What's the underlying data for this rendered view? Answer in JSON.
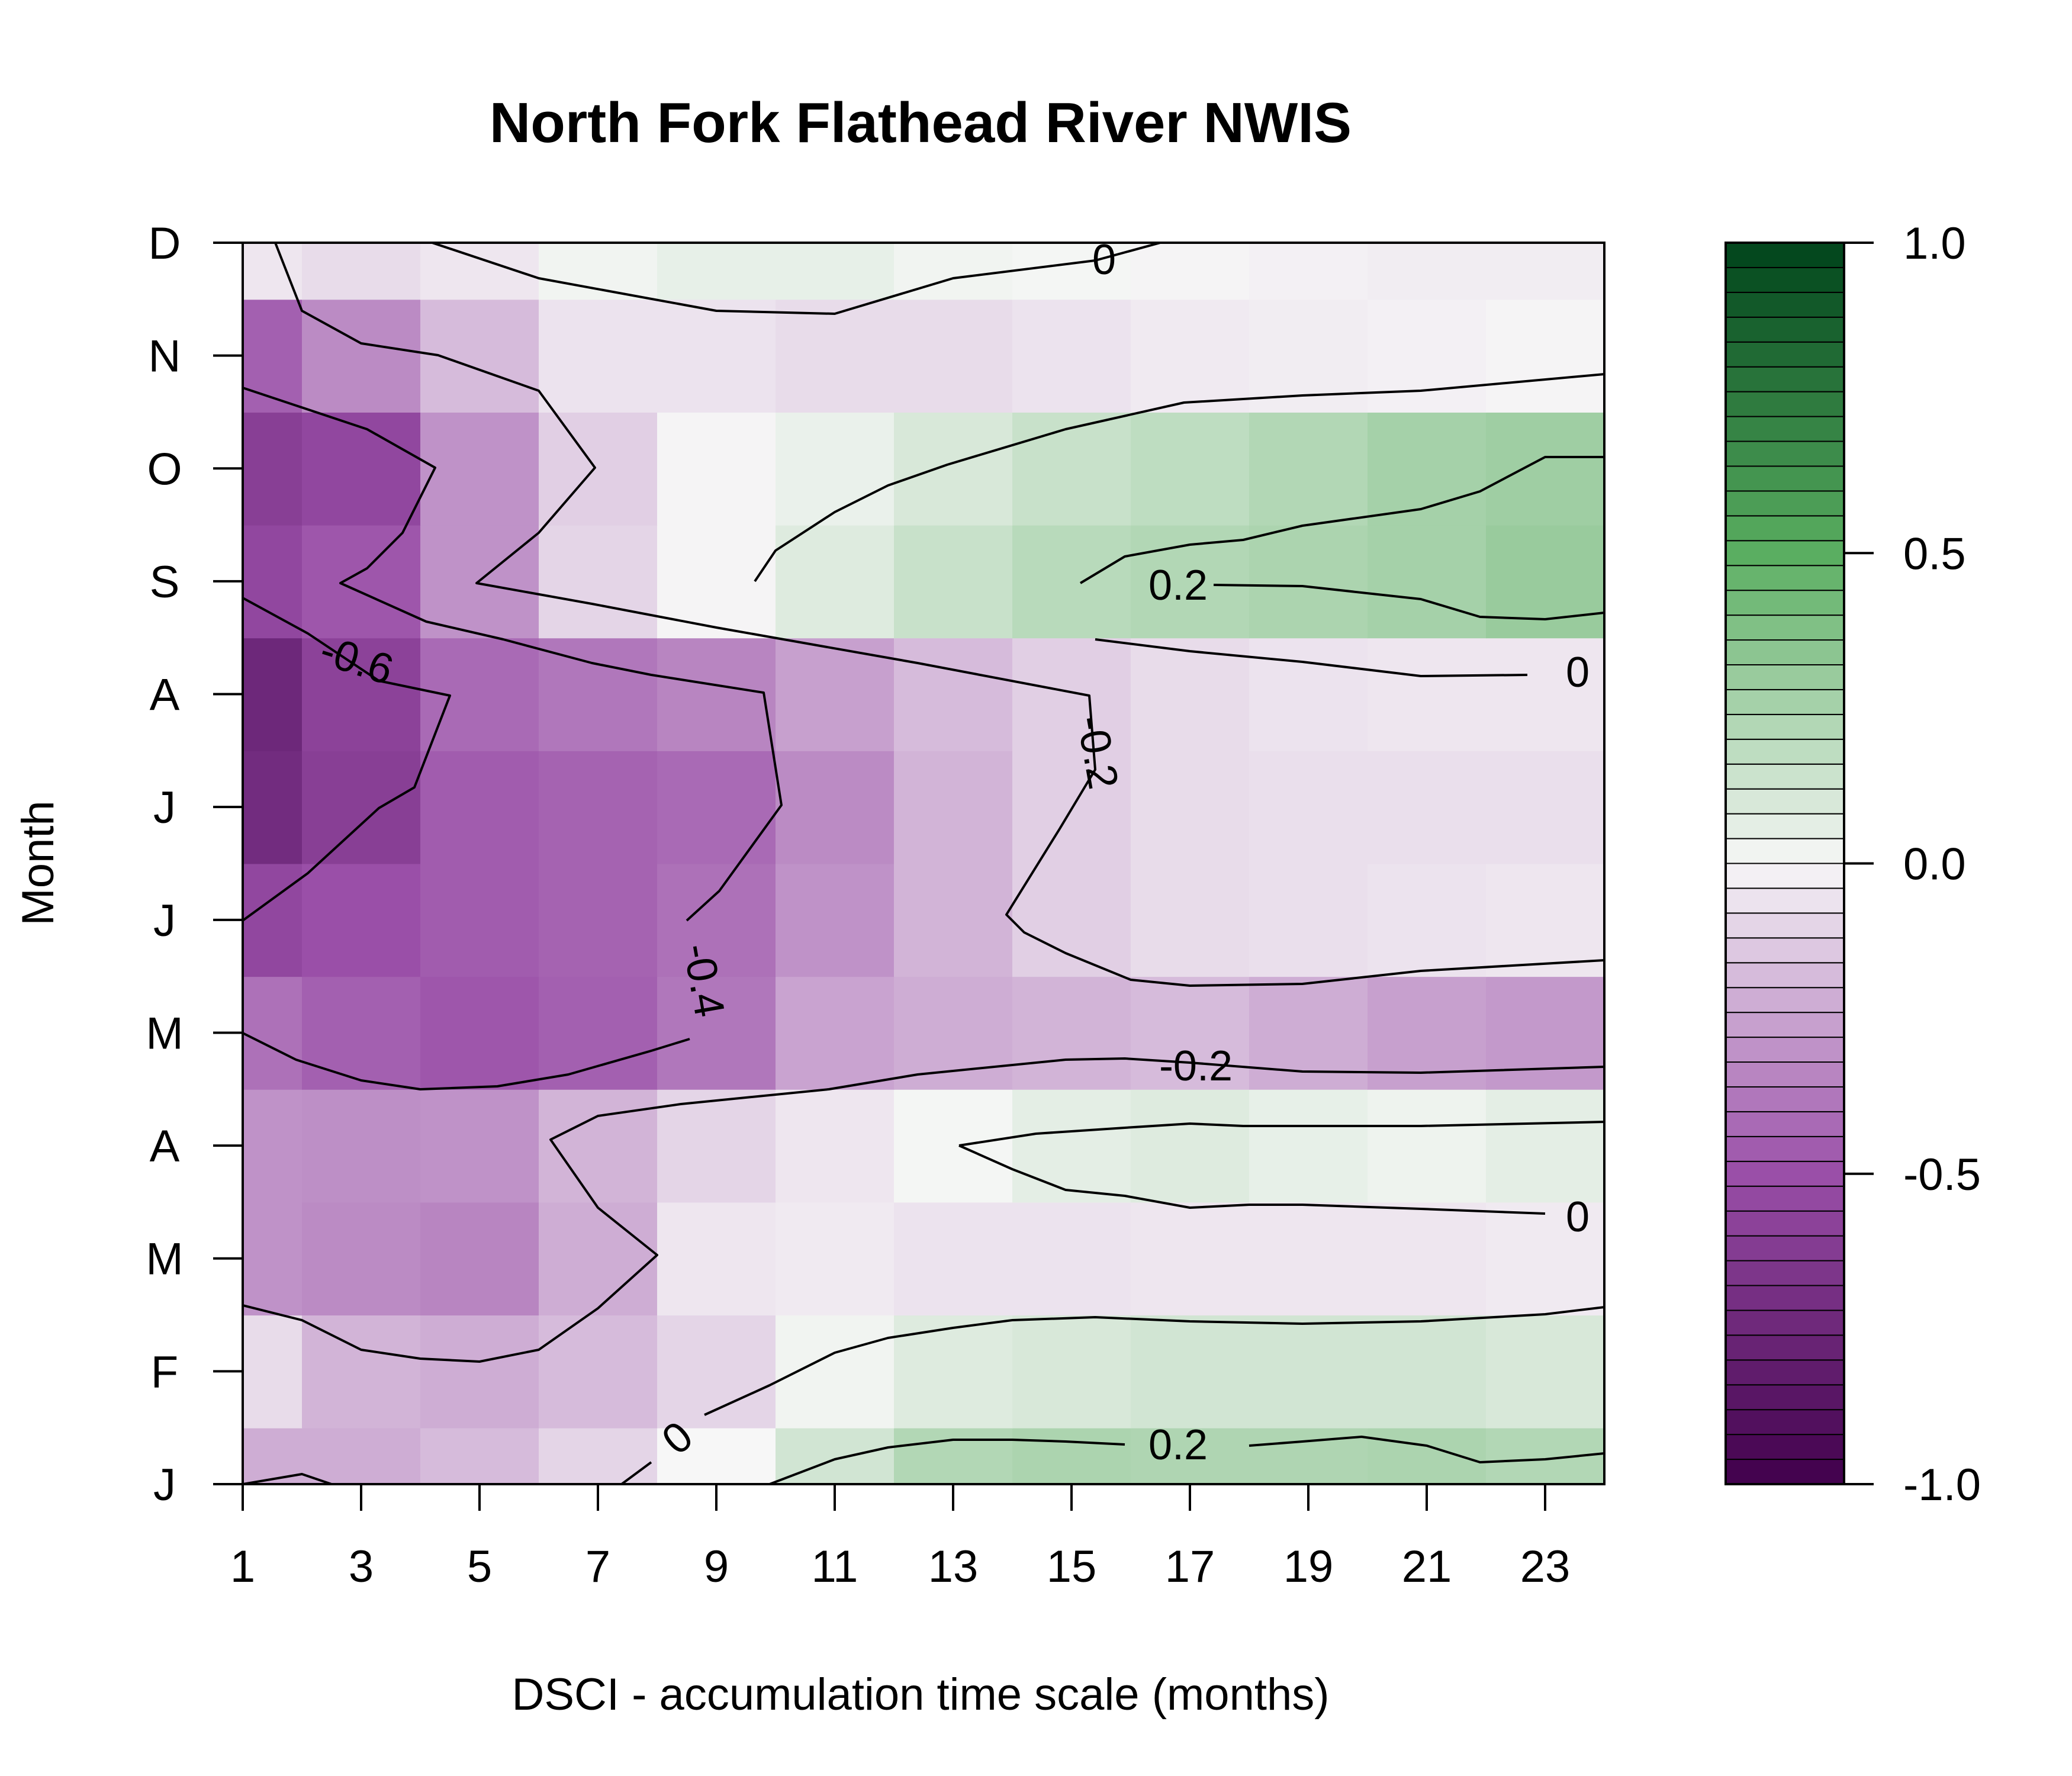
{
  "chart_data": {
    "type": "heatmap",
    "title": "North Fork Flathead River NWIS",
    "xlabel": "DSCI - accumulation time scale (months)",
    "ylabel": "Month",
    "x": [
      1,
      3,
      5,
      7,
      9,
      11,
      13,
      15,
      17,
      19,
      21,
      23
    ],
    "x_tick_labels": [
      "1",
      "3",
      "5",
      "7",
      "9",
      "11",
      "13",
      "15",
      "17",
      "19",
      "21",
      "23"
    ],
    "xlim": [
      1,
      24
    ],
    "y_tick_labels": [
      "J",
      "F",
      "M",
      "A",
      "M",
      "J",
      "J",
      "A",
      "S",
      "O",
      "N",
      "D"
    ],
    "ylim": [
      1,
      12
    ],
    "values": [
      [
        -0.22,
        -0.22,
        -0.18,
        -0.1,
        0.0,
        0.12,
        0.22,
        0.24,
        0.23,
        0.23,
        0.24,
        0.22
      ],
      [
        -0.08,
        -0.2,
        -0.22,
        -0.18,
        -0.1,
        0.02,
        0.08,
        0.1,
        0.12,
        0.12,
        0.12,
        0.1
      ],
      [
        -0.3,
        -0.32,
        -0.34,
        -0.22,
        -0.05,
        -0.04,
        -0.06,
        -0.06,
        -0.05,
        -0.05,
        -0.05,
        -0.04
      ],
      [
        -0.3,
        -0.31,
        -0.3,
        -0.2,
        -0.1,
        -0.05,
        0.01,
        0.06,
        0.08,
        0.05,
        0.03,
        0.06
      ],
      [
        -0.4,
        -0.45,
        -0.48,
        -0.45,
        -0.38,
        -0.25,
        -0.22,
        -0.2,
        -0.18,
        -0.22,
        -0.26,
        -0.28
      ],
      [
        -0.55,
        -0.5,
        -0.46,
        -0.44,
        -0.4,
        -0.3,
        -0.2,
        -0.12,
        -0.08,
        -0.07,
        -0.06,
        -0.05
      ],
      [
        -0.72,
        -0.6,
        -0.46,
        -0.44,
        -0.42,
        -0.32,
        -0.2,
        -0.12,
        -0.08,
        -0.07,
        -0.07,
        -0.07
      ],
      [
        -0.75,
        -0.58,
        -0.42,
        -0.38,
        -0.34,
        -0.26,
        -0.18,
        -0.12,
        -0.08,
        -0.06,
        -0.05,
        -0.05
      ],
      [
        -0.55,
        -0.48,
        -0.3,
        -0.1,
        -0.01,
        0.08,
        0.15,
        0.2,
        0.22,
        0.24,
        0.26,
        0.3
      ],
      [
        -0.6,
        -0.55,
        -0.3,
        -0.12,
        -0.01,
        0.04,
        0.1,
        0.15,
        0.18,
        0.22,
        0.26,
        0.28
      ],
      [
        -0.45,
        -0.32,
        -0.18,
        -0.06,
        -0.06,
        -0.08,
        -0.08,
        -0.06,
        -0.04,
        -0.03,
        -0.02,
        -0.01
      ],
      [
        -0.05,
        -0.08,
        -0.05,
        0.02,
        0.05,
        0.05,
        0.02,
        0.01,
        -0.01,
        -0.02,
        -0.03,
        -0.03
      ]
    ],
    "contour_levels": [
      -0.6,
      -0.4,
      -0.2,
      0,
      0.2
    ],
    "contour_labels": [
      "-0.6",
      "-0.4",
      "-0.2",
      "-0.2",
      "0",
      "0",
      "0",
      "0.2",
      "0.2",
      "0"
    ],
    "colorbar": {
      "range": [
        -1.0,
        1.0
      ],
      "tick_values": [
        -1.0,
        -0.5,
        0.0,
        0.5,
        1.0
      ],
      "tick_labels": [
        "-1.0",
        "-0.5",
        "0.0",
        "0.5",
        "1.0"
      ],
      "negative_color": "#40004b",
      "mid_negative_color": "#9a4fa8",
      "neutral_color": "#f7f7f7",
      "mid_positive_color": "#5aae61",
      "positive_color": "#00441b"
    },
    "grid": false,
    "legend": "colorbar on right"
  }
}
